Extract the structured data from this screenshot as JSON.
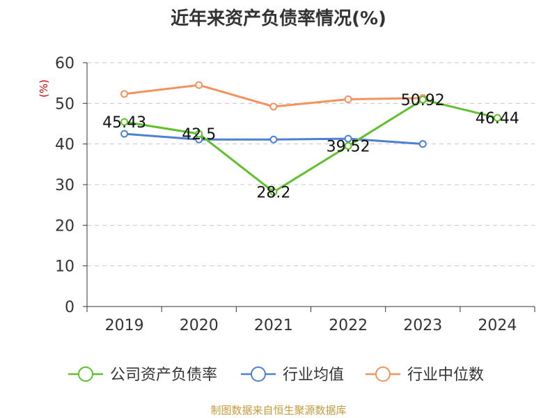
{
  "title": "近年来资产负债率情况(%)",
  "source": "制图数据来自恒生聚源数据库",
  "chart_data": {
    "type": "line",
    "title": "近年来资产负债率情况(%)",
    "ylabel": "(%)",
    "xlabel": "",
    "categories": [
      "2019",
      "2020",
      "2021",
      "2022",
      "2023",
      "2024"
    ],
    "ylim": [
      0,
      60
    ],
    "yticks": [
      0,
      10,
      20,
      30,
      40,
      50,
      60
    ],
    "grid": "horizontal dashed",
    "legend_position": "bottom",
    "series": [
      {
        "name": "公司资产负债率",
        "color": "#5fc02c",
        "values": [
          45.43,
          42.5,
          28.2,
          39.52,
          50.92,
          46.44
        ],
        "labels": [
          "45.43",
          "42.5",
          "28.2",
          "39.52",
          "50.92",
          "46.44"
        ]
      },
      {
        "name": "行业均值",
        "color": "#4c7fd6",
        "values": [
          42.5,
          41.1,
          41.1,
          41.3,
          40.0,
          null
        ]
      },
      {
        "name": "行业中位数",
        "color": "#f3925c",
        "values": [
          52.3,
          54.5,
          49.2,
          51.0,
          51.3,
          null
        ]
      }
    ]
  }
}
